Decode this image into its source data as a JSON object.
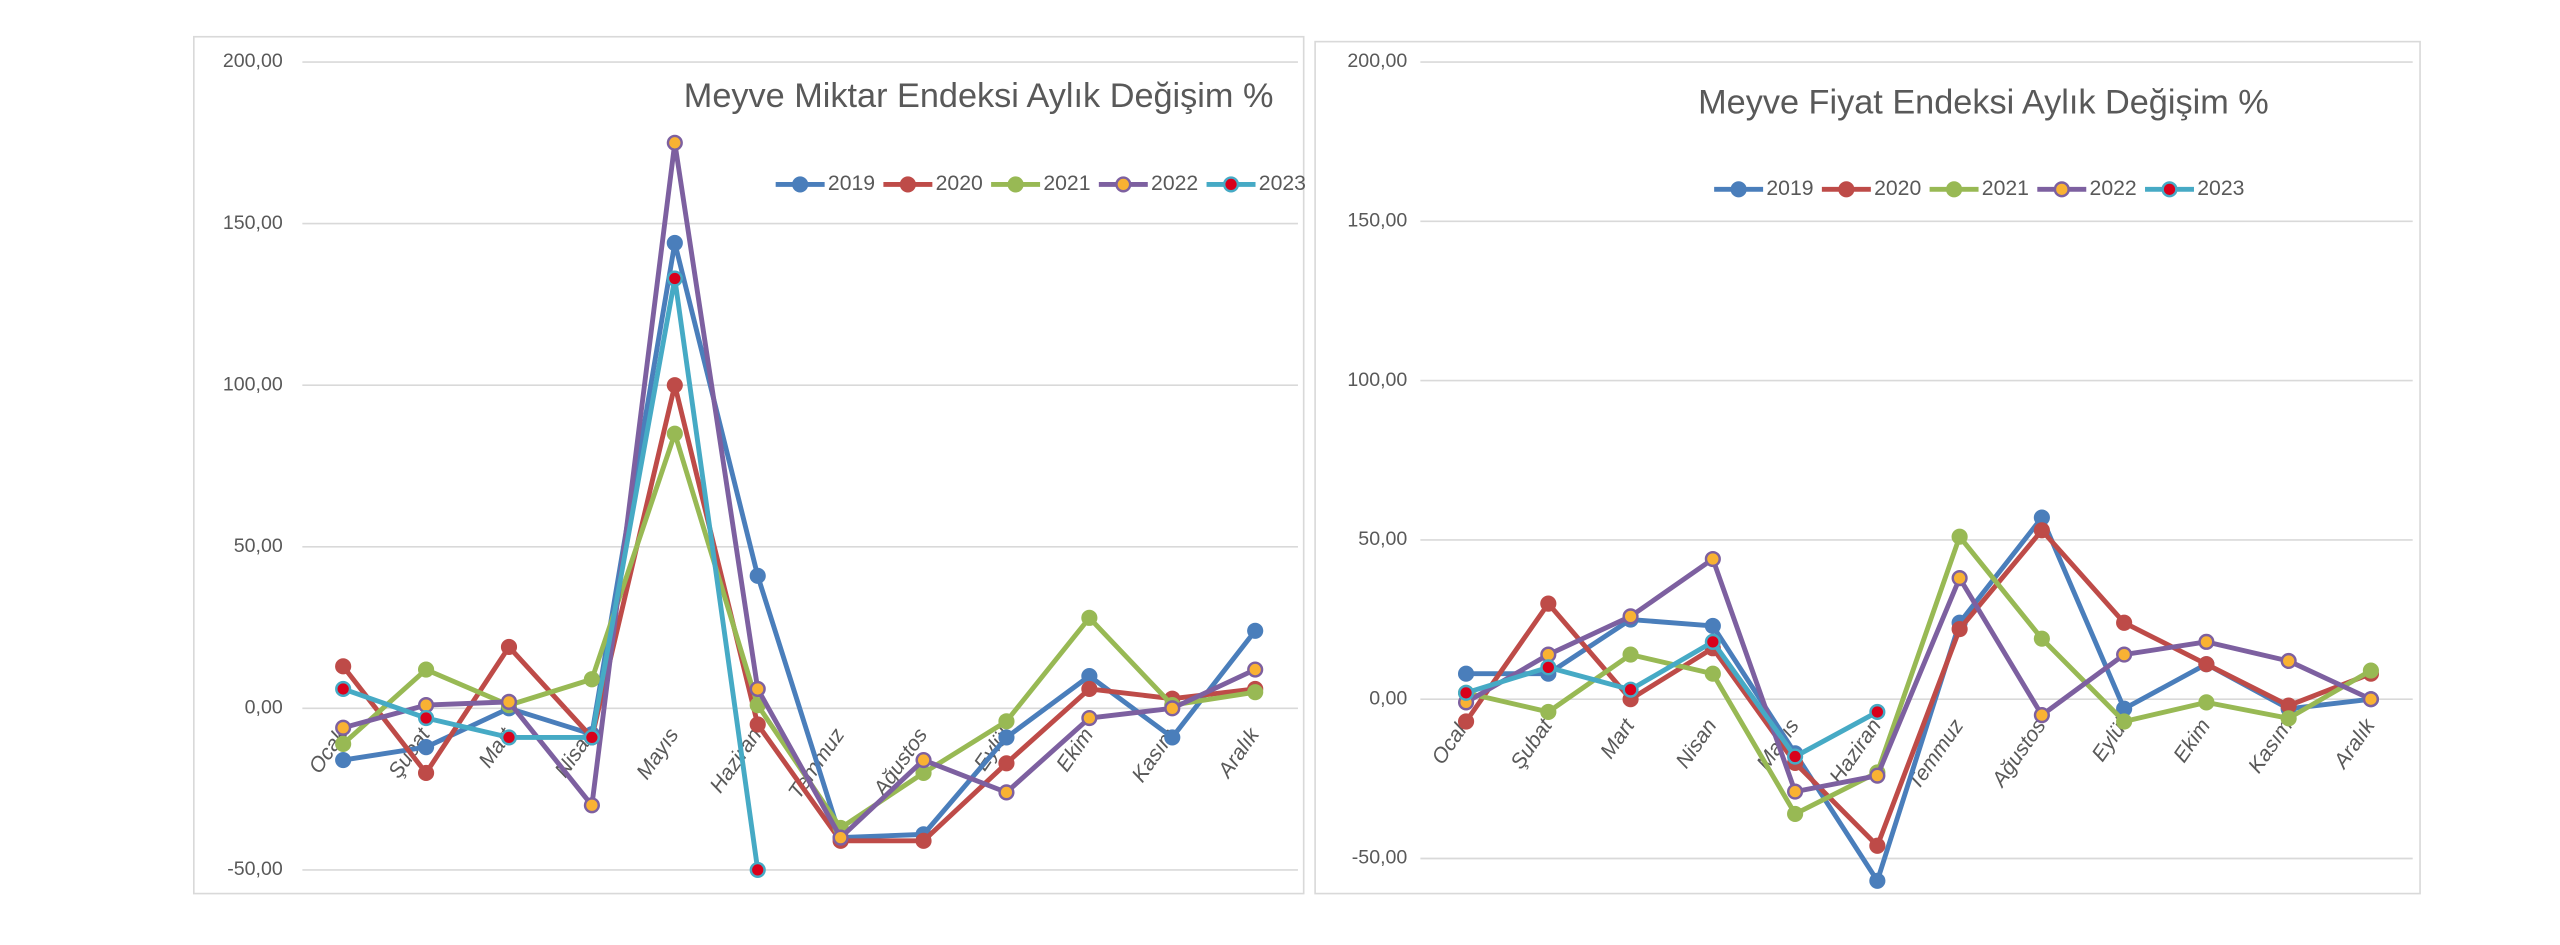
{
  "chart_data": [
    {
      "type": "line",
      "title": "Meyve Miktar Endeksi Aylık Değişim %",
      "categories": [
        "Ocak",
        "Şubat",
        "Mart",
        "Nisan",
        "Mayıs",
        "Haziran",
        "Temmuz",
        "Ağustos",
        "Eylül",
        "Ekim",
        "Kasım",
        "Aralık"
      ],
      "ylim": [
        -50,
        200
      ],
      "yticks": [
        {
          "value": -50,
          "label": "-50,00"
        },
        {
          "value": 0,
          "label": "0,00"
        },
        {
          "value": 50,
          "label": "50,00"
        },
        {
          "value": 100,
          "label": "100,00"
        },
        {
          "value": 150,
          "label": "150,00"
        },
        {
          "value": 200,
          "label": "200,00"
        }
      ],
      "grid": true,
      "legend": "top-right",
      "series": [
        {
          "name": "2019",
          "color": "#4a7ebb",
          "marker_color": "#4a7ebb",
          "values": [
            -16,
            -12,
            0,
            -8,
            144,
            41,
            -40,
            -39,
            -9,
            10,
            -9,
            24
          ]
        },
        {
          "name": "2020",
          "color": "#be4b48",
          "marker_color": "#be4b48",
          "values": [
            13,
            -20,
            19,
            -9,
            100,
            -5,
            -41,
            -41,
            -17,
            6,
            3,
            6
          ]
        },
        {
          "name": "2021",
          "color": "#98b954",
          "marker_color": "#98b954",
          "values": [
            -11,
            12,
            1,
            9,
            85,
            1,
            -37,
            -20,
            -4,
            28,
            1,
            5
          ]
        },
        {
          "name": "2022",
          "color": "#7d60a0",
          "marker_color": "#f9b233",
          "values": [
            -6,
            1,
            2,
            -30,
            175,
            6,
            -40,
            -16,
            -26,
            -3,
            0,
            12
          ]
        },
        {
          "name": "2023",
          "color": "#46aac5",
          "marker_color": "#d9001b",
          "values": [
            6,
            -3,
            -9,
            -9,
            133,
            -50,
            null,
            null,
            null,
            null,
            null,
            null
          ]
        }
      ]
    },
    {
      "type": "line",
      "title": "Meyve Fiyat Endeksi Aylık Değişim %",
      "categories": [
        "Ocak",
        "Şubat",
        "Mart",
        "Nisan",
        "Mayıs",
        "Haziran",
        "Temmuz",
        "Ağustos",
        "Eylül",
        "Ekim",
        "Kasım",
        "Aralık"
      ],
      "ylim": [
        -50,
        200
      ],
      "yticks": [
        {
          "value": -50,
          "label": "-50,00"
        },
        {
          "value": 0,
          "label": "0,00"
        },
        {
          "value": 50,
          "label": "50,00"
        },
        {
          "value": 100,
          "label": "100,00"
        },
        {
          "value": 150,
          "label": "150,00"
        },
        {
          "value": 200,
          "label": "200,00"
        }
      ],
      "grid": true,
      "legend": "top",
      "series": [
        {
          "name": "2019",
          "color": "#4a7ebb",
          "marker_color": "#4a7ebb",
          "values": [
            8,
            8,
            25,
            23,
            -17,
            -57,
            24,
            57,
            -3,
            11,
            -3,
            0
          ]
        },
        {
          "name": "2020",
          "color": "#be4b48",
          "marker_color": "#be4b48",
          "values": [
            -7,
            30,
            0,
            16,
            -20,
            -46,
            22,
            53,
            24,
            11,
            -2,
            8
          ]
        },
        {
          "name": "2021",
          "color": "#98b954",
          "marker_color": "#98b954",
          "values": [
            2,
            -4,
            14,
            8,
            -36,
            -23,
            51,
            19,
            -7,
            -1,
            -6,
            9
          ]
        },
        {
          "name": "2022",
          "color": "#7d60a0",
          "marker_color": "#f9b233",
          "values": [
            -1,
            14,
            26,
            44,
            -29,
            -24,
            38,
            -5,
            14,
            18,
            12,
            0
          ]
        },
        {
          "name": "2023",
          "color": "#46aac5",
          "marker_color": "#d9001b",
          "values": [
            2,
            10,
            3,
            18,
            -18,
            -4,
            null,
            null,
            null,
            null,
            null,
            null
          ]
        }
      ]
    }
  ]
}
